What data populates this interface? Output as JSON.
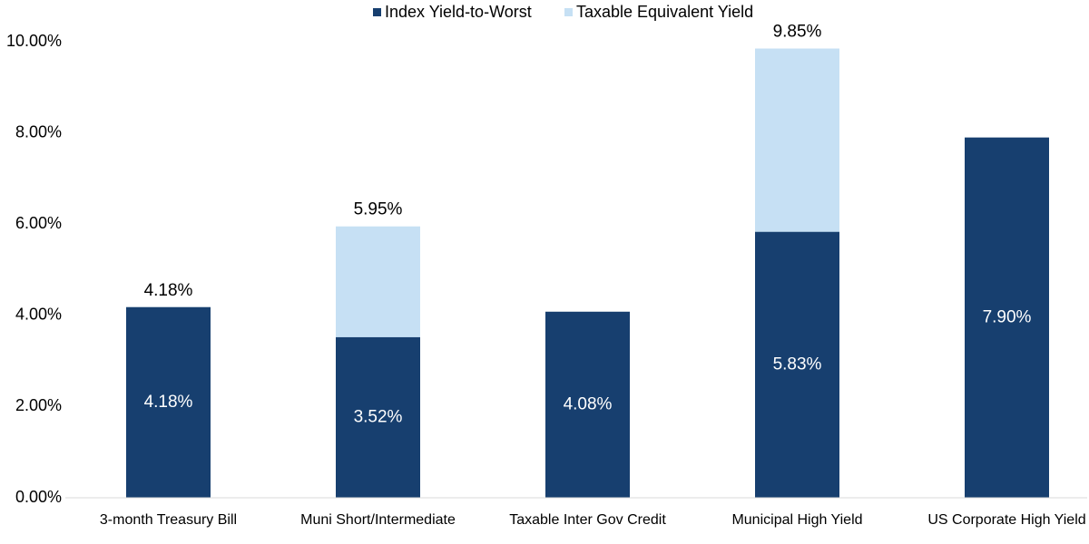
{
  "chart_data": {
    "type": "bar",
    "categories": [
      "3-month Treasury Bill",
      "Muni Short/Intermediate",
      "Taxable Inter Gov Credit",
      "Municipal High Yield",
      "US Corporate High Yield"
    ],
    "series": [
      {
        "name": "Index Yield-to-Worst",
        "color": "#173f6f",
        "values": [
          4.18,
          3.52,
          4.08,
          5.83,
          7.9
        ],
        "value_labels": [
          "4.18%",
          "3.52%",
          "4.08%",
          "5.83%",
          "7.90%"
        ]
      },
      {
        "name": "Taxable Equivalent Yield",
        "color": "#c6e0f4",
        "values": [
          4.18,
          5.95,
          null,
          9.85,
          null
        ],
        "value_labels": [
          "4.18%",
          "5.95%",
          null,
          "9.85%",
          null
        ]
      }
    ],
    "ylim": [
      0,
      10
    ],
    "yticks": [
      {
        "value": 0,
        "label": "0.00%"
      },
      {
        "value": 2,
        "label": "2.00%"
      },
      {
        "value": 4,
        "label": "4.00%"
      },
      {
        "value": 6,
        "label": "6.00%"
      },
      {
        "value": 8,
        "label": "8.00%"
      },
      {
        "value": 10,
        "label": "10.00%"
      }
    ],
    "legend": "top"
  }
}
